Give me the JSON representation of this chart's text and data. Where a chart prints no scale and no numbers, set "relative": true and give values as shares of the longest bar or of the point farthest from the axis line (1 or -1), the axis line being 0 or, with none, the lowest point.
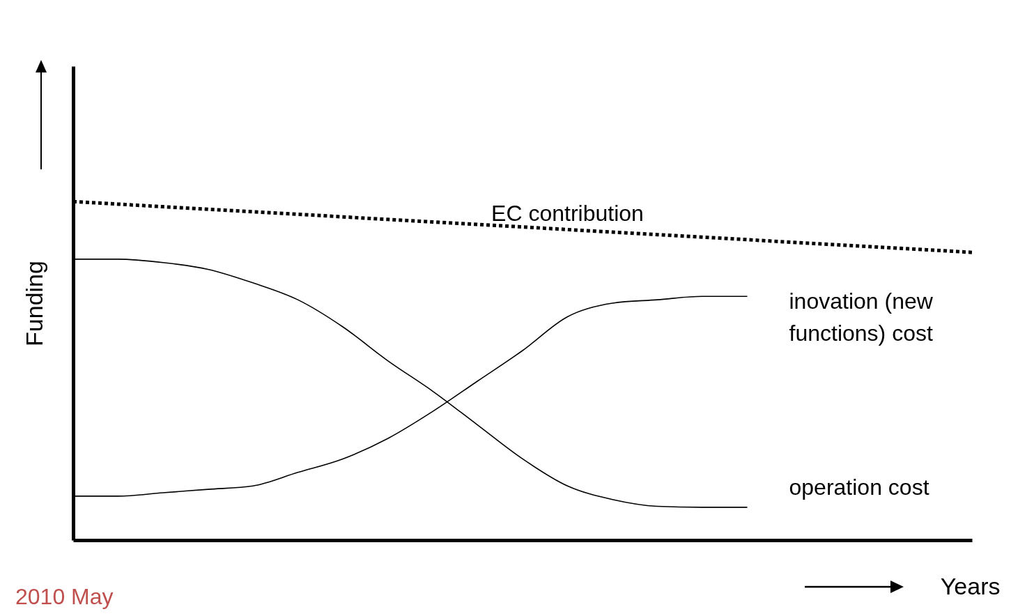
{
  "chart_data": {
    "type": "line",
    "relative": true,
    "xlabel": "Years",
    "ylabel": "Funding",
    "annotations": [
      "2010 May"
    ],
    "categories": [
      null,
      null,
      null,
      null,
      null,
      null,
      null,
      null,
      null,
      null,
      null,
      null,
      null,
      null,
      null,
      null,
      null,
      null,
      null,
      null,
      null
    ],
    "series": [
      {
        "name": "EC contribution",
        "color": "#000000",
        "line_style": "dotted",
        "values": [
          1,
          0.9925,
          0.985,
          0.9775,
          0.97,
          0.9625,
          0.955,
          0.9475,
          0.94,
          0.9325,
          0.925,
          0.9175,
          0.91,
          0.9025,
          0.895,
          0.8875,
          0.88,
          0.8725,
          0.865,
          0.8575,
          0.85
        ]
      },
      {
        "name": "inovation (new functions) cost",
        "color": "#000000",
        "line_style": "solid",
        "values": [
          0.13,
          0.13,
          0.14,
          0.15,
          0.16,
          0.2,
          0.24,
          0.3,
          0.38,
          0.47,
          0.56,
          0.66,
          0.7,
          0.71,
          0.72,
          0.72,
          null,
          null,
          null,
          null,
          null
        ]
      },
      {
        "name": "operation cost",
        "color": "#000000",
        "line_style": "solid",
        "values": [
          0.83,
          0.83,
          0.82,
          0.8,
          0.76,
          0.71,
          0.63,
          0.53,
          0.44,
          0.34,
          0.24,
          0.16,
          0.12,
          0.1,
          0.097,
          0.097,
          null,
          null,
          null,
          null,
          null
        ]
      }
    ]
  }
}
